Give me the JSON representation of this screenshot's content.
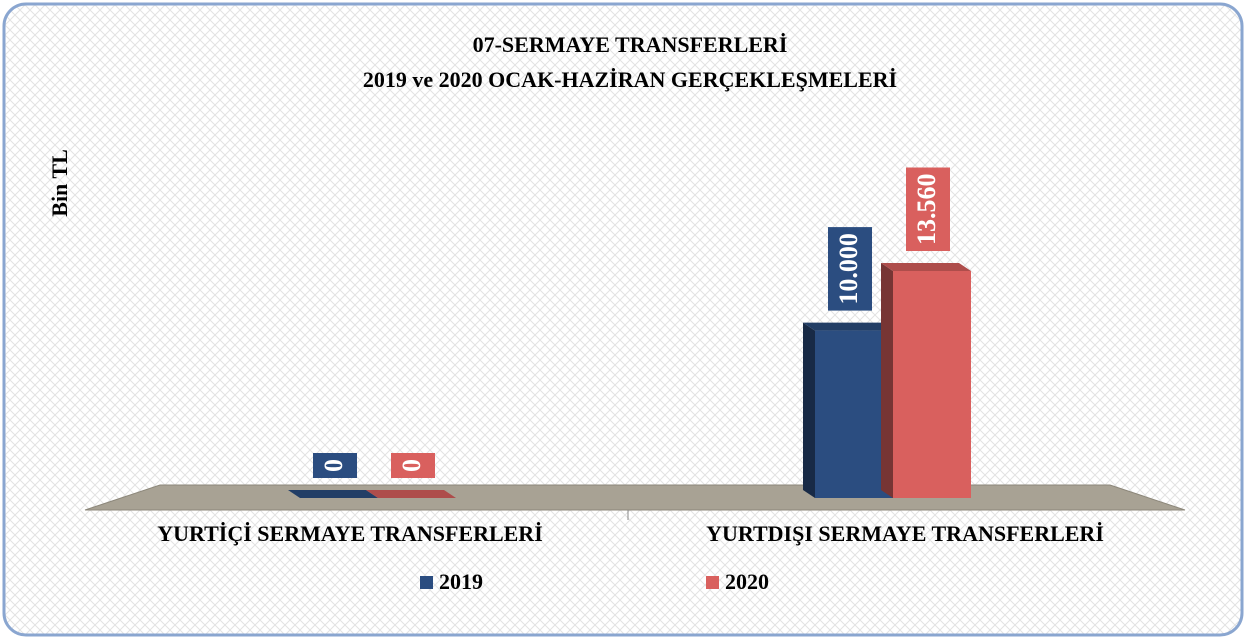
{
  "chart_data": {
    "type": "bar3d",
    "title": "07-SERMAYE TRANSFERLERİ",
    "subtitle": "2019 ve 2020 OCAK-HAZİRAN GERÇEKLEŞMELERİ",
    "y_label": "Bin TL",
    "categories": [
      "YURTİÇİ SERMAYE TRANSFERLERİ",
      "YURTDIŞI SERMAYE TRANSFERLERİ"
    ],
    "series": [
      {
        "name": "2019",
        "color": "#2b4d80",
        "values": [
          0,
          10000
        ],
        "value_labels": [
          "0",
          "10.000"
        ]
      },
      {
        "name": "2020",
        "color": "#d9605e",
        "values": [
          0,
          13560
        ],
        "value_labels": [
          "0",
          "13.560"
        ]
      }
    ]
  }
}
